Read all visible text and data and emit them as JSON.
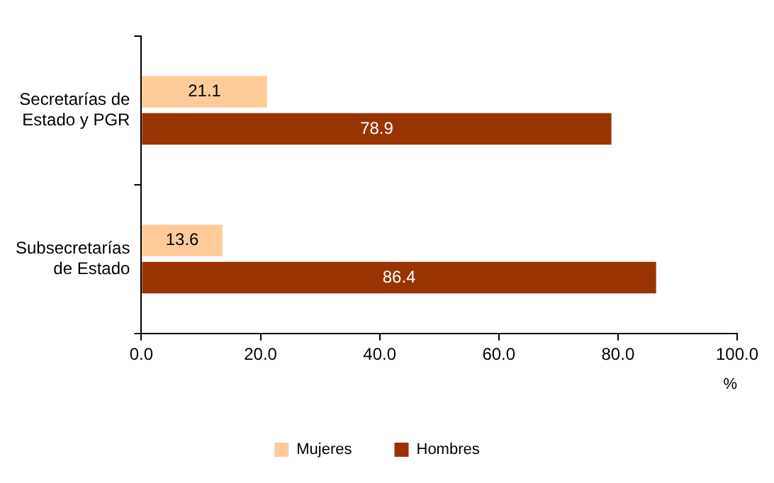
{
  "chart_data": {
    "type": "bar",
    "orientation": "horizontal",
    "categories": [
      "Secretarías de Estado y PGR",
      "Subsecretarías de Estado"
    ],
    "series": [
      {
        "name": "Mujeres",
        "color": "#ffcc99",
        "values": [
          21.1,
          13.6
        ]
      },
      {
        "name": "Hombres",
        "color": "#993300",
        "values": [
          78.9,
          86.4
        ]
      }
    ],
    "xlim": [
      0,
      100
    ],
    "xticks": [
      {
        "value": 0,
        "label": "0.0"
      },
      {
        "value": 20,
        "label": "20.0"
      },
      {
        "value": 40,
        "label": "40.0"
      },
      {
        "value": 60,
        "label": "60.0"
      },
      {
        "value": 80,
        "label": "80.0"
      },
      {
        "value": 100,
        "label": "100.0"
      }
    ],
    "xlabel": "%",
    "data_labels": true,
    "legend": "bottom",
    "grid": false
  }
}
